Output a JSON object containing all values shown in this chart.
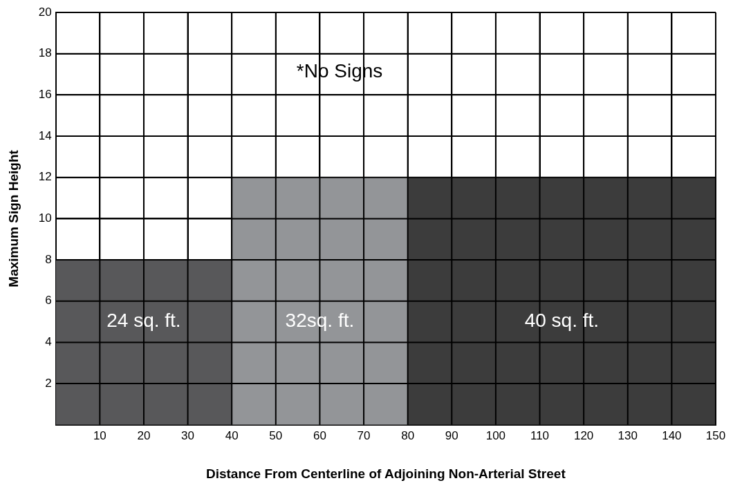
{
  "chart_data": {
    "type": "area",
    "xlabel": "Distance From Centerline of Adjoining Non-Arterial Street",
    "ylabel": "Maximum Sign Height",
    "series": [
      {
        "x": [
          0,
          40
        ],
        "values": [
          8,
          8
        ],
        "color": "#58585a"
      },
      {
        "x": [
          40,
          80
        ],
        "values": [
          12,
          12
        ],
        "color": "#939598"
      },
      {
        "x": [
          80,
          150
        ],
        "values": [
          12,
          12
        ],
        "color": "#3c3c3c"
      }
    ],
    "xlim": [
      0,
      150
    ],
    "xticks": [
      10,
      20,
      30,
      40,
      50,
      60,
      70,
      80,
      90,
      100,
      110,
      120,
      130,
      140,
      150
    ],
    "ylim": [
      0,
      20
    ],
    "yticks": [
      2,
      4,
      6,
      8,
      10,
      12,
      14,
      16,
      18,
      20
    ],
    "grid": true,
    "legend": false,
    "annotations": [
      "*No Signs",
      "24 sq. ft.",
      "32sq. ft.",
      "40 sq. ft."
    ]
  }
}
